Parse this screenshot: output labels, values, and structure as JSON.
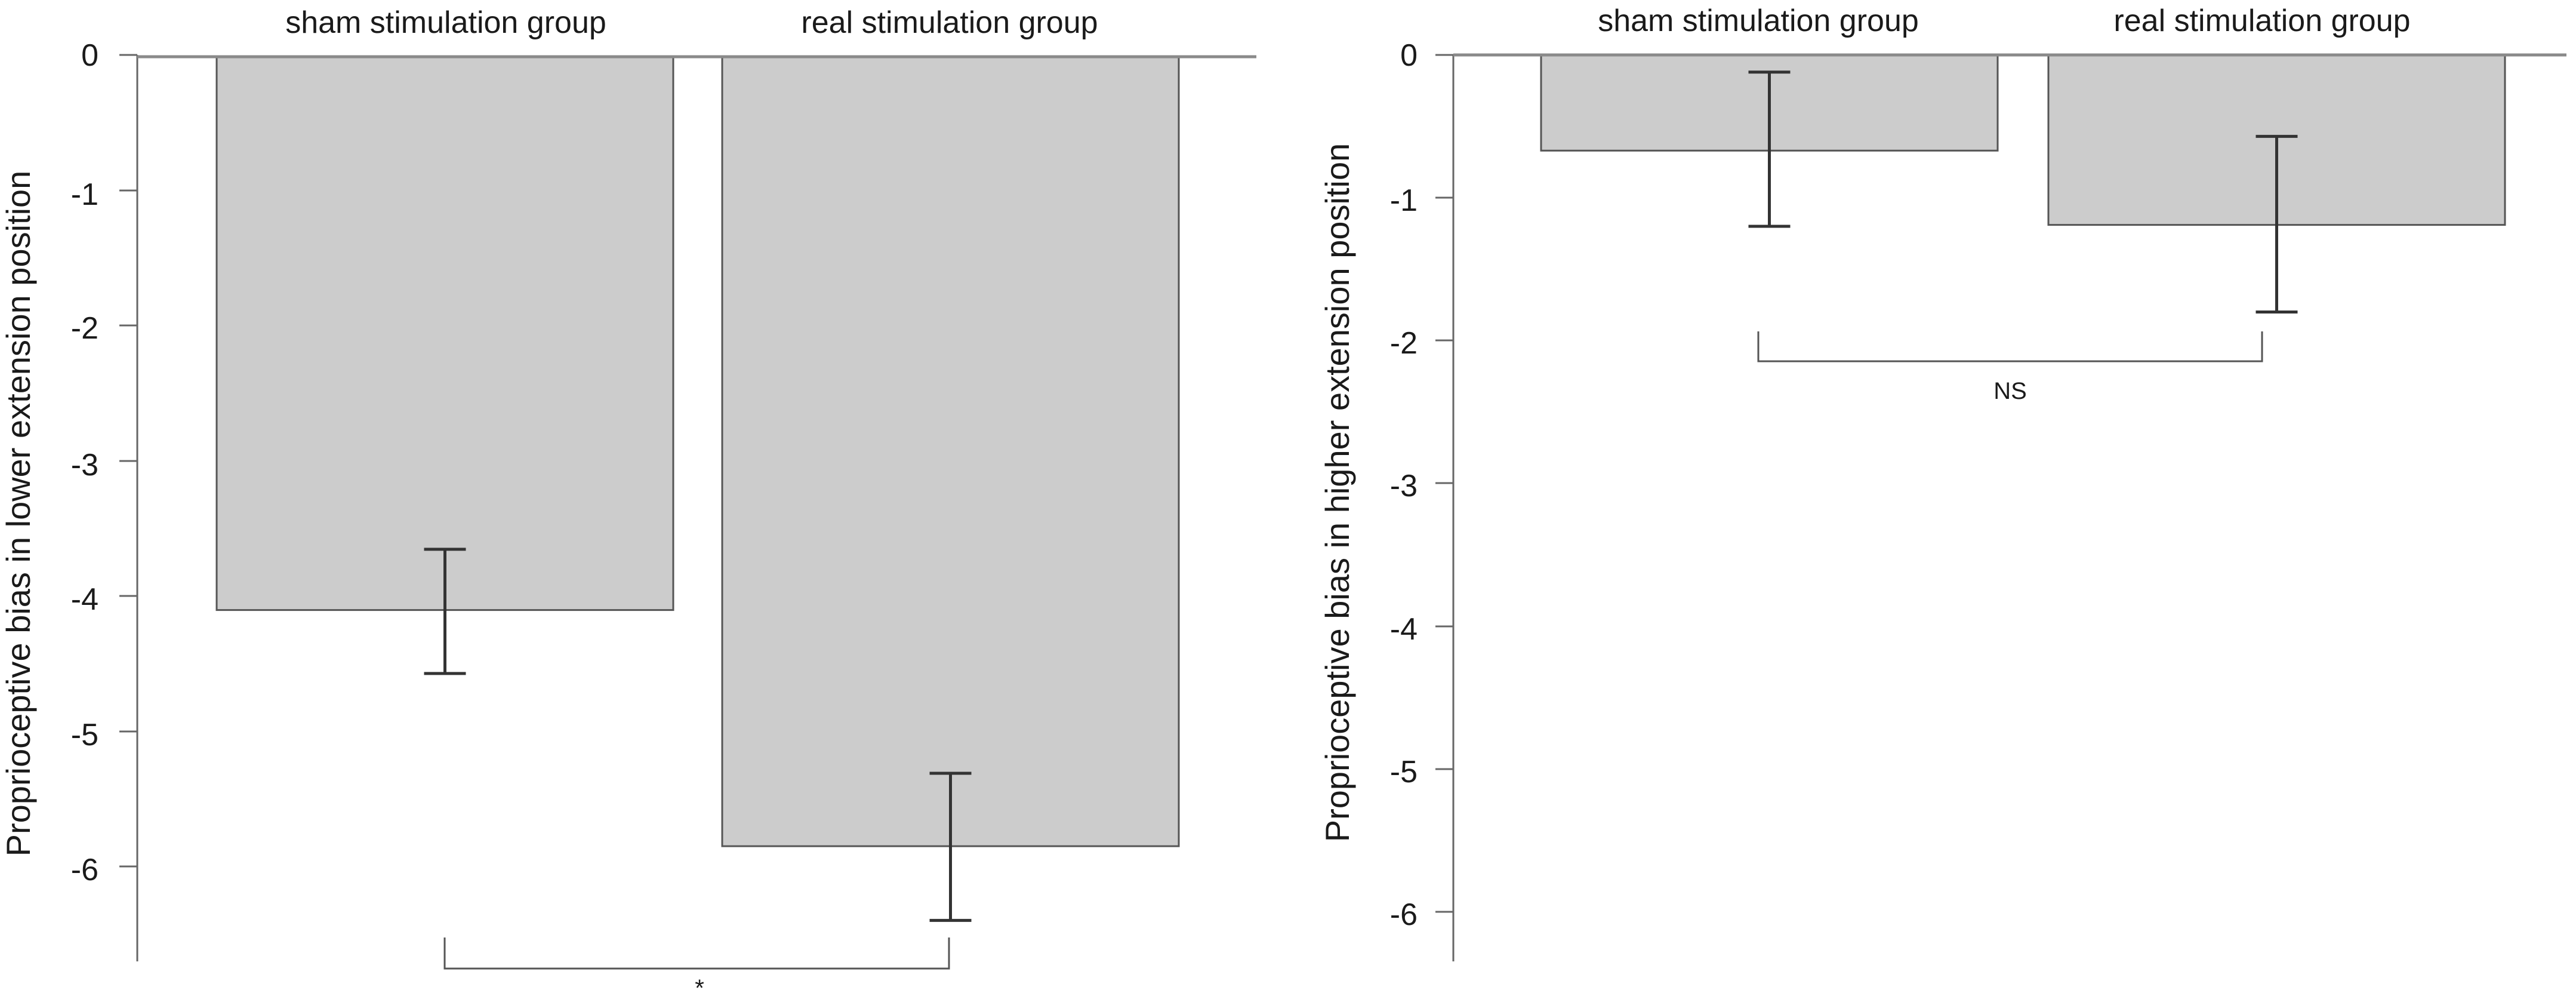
{
  "chart_data": [
    {
      "type": "bar",
      "categories": [
        "sham stimulation group",
        "real stimulation group"
      ],
      "values": [
        -4.1,
        -5.85
      ],
      "error_low": [
        -4.57,
        -6.4
      ],
      "error_high": [
        -3.65,
        -5.31
      ],
      "ylabel": "Proprioceptive bias in lower extension position",
      "xlabel": "",
      "title": "",
      "ylim": [
        -6.7,
        0
      ],
      "yticks": [
        "0",
        "-1",
        "-2",
        "-3",
        "-4",
        "-5",
        "-6"
      ],
      "significance": "*",
      "bar_color": "#cccccc",
      "grid": false
    },
    {
      "type": "bar",
      "categories": [
        "sham stimulation group",
        "real stimulation group"
      ],
      "values": [
        -0.67,
        -1.19
      ],
      "error_low": [
        -1.2,
        -1.8
      ],
      "error_high": [
        -0.12,
        -0.57
      ],
      "ylabel": "Proprioceptive bias in higher extension position",
      "xlabel": "",
      "title": "",
      "ylim": [
        -6.3,
        0
      ],
      "yticks": [
        "0",
        "-1",
        "-2",
        "-3",
        "-4",
        "-5",
        "-6"
      ],
      "significance": "NS",
      "bar_color": "#cccccc",
      "grid": false
    }
  ]
}
